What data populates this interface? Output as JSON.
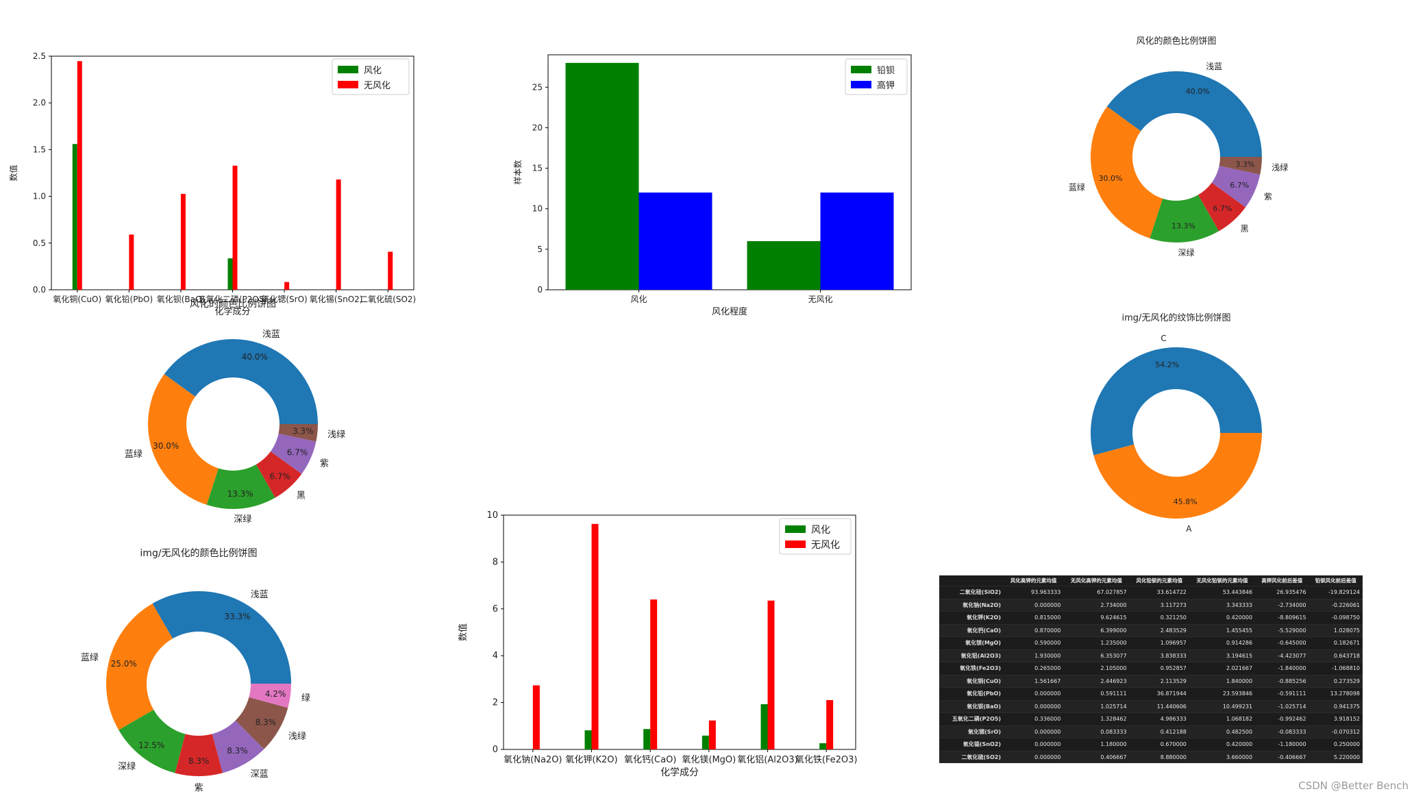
{
  "watermark": "CSDN @Better Bench",
  "colors": {
    "green": "#008000",
    "red": "#ff0000",
    "blue": "#0000ff",
    "pie": {
      "tab_blue": "#1f77b4",
      "tab_orange": "#ff7f0e",
      "tab_green": "#2ca02c",
      "tab_red": "#d62728",
      "tab_purple": "#9467bd",
      "tab_brown": "#8c564b",
      "tab_pink": "#e377c2"
    }
  },
  "chart_data": [
    {
      "id": "bar1",
      "type": "bar",
      "title": "",
      "xlabel": "化学成分",
      "ylabel": "数值",
      "ylim": [
        0,
        2.5
      ],
      "yticks": [
        0.0,
        0.5,
        1.0,
        1.5,
        2.0,
        2.5
      ],
      "ytick_labels": [
        "0.0",
        "0.5",
        "1.0",
        "1.5",
        "2.0",
        "2.5"
      ],
      "categories": [
        "氧化铜(CuO)",
        "氧化铅(PbO)",
        "氧化钡(BaO)",
        "五氧化二磷(P2O5)",
        "氧化锶(SrO)",
        "氧化锡(SnO2)",
        "二氧化硫(SO2)"
      ],
      "series": [
        {
          "name": "风化",
          "color": "green",
          "values": [
            1.56,
            0.0,
            0.0,
            0.336,
            0.0,
            0.0,
            0.0
          ]
        },
        {
          "name": "无风化",
          "color": "red",
          "values": [
            2.447,
            0.591,
            1.026,
            1.328,
            0.083,
            1.18,
            0.407
          ]
        }
      ],
      "legend": "top-right"
    },
    {
      "id": "bar2",
      "type": "bar",
      "title": "",
      "xlabel": "风化程度",
      "ylabel": "样本数",
      "ylim": [
        0,
        29
      ],
      "yticks": [
        0,
        5,
        10,
        15,
        20,
        25
      ],
      "ytick_labels": [
        "0",
        "5",
        "10",
        "15",
        "20",
        "25"
      ],
      "categories": [
        "风化",
        "无风化"
      ],
      "series": [
        {
          "name": "铅钡",
          "color": "green",
          "values": [
            28,
            6
          ]
        },
        {
          "name": "高钾",
          "color": "blue",
          "values": [
            12,
            12
          ]
        }
      ],
      "legend": "top-right"
    },
    {
      "id": "bar3",
      "type": "bar",
      "title": "",
      "xlabel": "化学成分",
      "ylabel": "数值",
      "ylim": [
        0,
        10
      ],
      "yticks": [
        0,
        2,
        4,
        6,
        8,
        10
      ],
      "ytick_labels": [
        "0",
        "2",
        "4",
        "6",
        "8",
        "10"
      ],
      "categories": [
        "氧化钠(Na2O)",
        "氧化钾(K2O)",
        "氧化钙(CaO)",
        "氧化镁(MgO)",
        "氧化铝(Al2O3)",
        "氧化铁(Fe2O3)"
      ],
      "series": [
        {
          "name": "风化",
          "color": "green",
          "values": [
            0.0,
            0.815,
            0.87,
            0.59,
            1.93,
            0.265
          ]
        },
        {
          "name": "无风化",
          "color": "red",
          "values": [
            2.734,
            9.625,
            6.399,
            1.235,
            6.353,
            2.105
          ]
        }
      ],
      "legend": "top-right"
    },
    {
      "id": "pie1",
      "type": "pie",
      "title": "风化的颜色比例饼图",
      "labels": [
        "浅蓝",
        "蓝绿",
        "深绿",
        "黑",
        "紫",
        "浅绿"
      ],
      "values": [
        40.0,
        30.0,
        13.3,
        6.7,
        6.7,
        3.3
      ],
      "pct_labels": [
        "40.0%",
        "30.0%",
        "13.3%",
        "6.7%",
        "6.7%",
        "3.3%"
      ],
      "colors": [
        "tab_blue",
        "tab_orange",
        "tab_green",
        "tab_red",
        "tab_purple",
        "tab_brown"
      ]
    },
    {
      "id": "pie2",
      "type": "pie",
      "title": "风化的颜色比例饼图",
      "labels": [
        "浅蓝",
        "蓝绿",
        "深绿",
        "黑",
        "紫",
        "浅绿"
      ],
      "values": [
        40.0,
        30.0,
        13.3,
        6.7,
        6.7,
        3.3
      ],
      "pct_labels": [
        "40.0%",
        "30.0%",
        "13.3%",
        "6.7%",
        "6.7%",
        "3.3%"
      ],
      "colors": [
        "tab_blue",
        "tab_orange",
        "tab_green",
        "tab_red",
        "tab_purple",
        "tab_brown"
      ]
    },
    {
      "id": "pie3",
      "type": "pie",
      "title": "img/无风化的颜色比例饼图",
      "labels": [
        "浅蓝",
        "蓝绿",
        "深绿",
        "紫",
        "深蓝",
        "浅绿",
        "绿"
      ],
      "values": [
        33.3,
        25.0,
        12.5,
        8.3,
        8.3,
        8.3,
        4.2
      ],
      "pct_labels": [
        "33.3%",
        "25.0%",
        "12.5%",
        "8.3%",
        "8.3%",
        "8.3%",
        "4.2%"
      ],
      "colors": [
        "tab_blue",
        "tab_orange",
        "tab_green",
        "tab_red",
        "tab_purple",
        "tab_brown",
        "tab_pink"
      ]
    },
    {
      "id": "pie4",
      "type": "pie",
      "title": "img/无风化的纹饰比例饼图",
      "labels": [
        "C",
        "A"
      ],
      "values": [
        54.2,
        45.8
      ],
      "pct_labels": [
        "54.2%",
        "45.8%"
      ],
      "colors": [
        "tab_blue",
        "tab_orange"
      ]
    },
    {
      "id": "table1",
      "type": "table",
      "columns": [
        "",
        "风化高钾的元素均值",
        "无风化高钾的元素均值",
        "风化铅钡的元素均值",
        "无风化铅钡的元素均值",
        "高钾风化前后差值",
        "铅钡风化前后差值"
      ],
      "rows": [
        [
          "二氧化硅(SiO2)",
          "93.963333",
          "67.027857",
          "33.614722",
          "53.443846",
          "26.935476",
          "-19.829124"
        ],
        [
          "氧化钠(Na2O)",
          "0.000000",
          "2.734000",
          "3.117273",
          "3.343333",
          "-2.734000",
          "-0.226061"
        ],
        [
          "氧化钾(K2O)",
          "0.815000",
          "9.624615",
          "0.321250",
          "0.420000",
          "-8.809615",
          "-0.098750"
        ],
        [
          "氧化钙(CaO)",
          "0.870000",
          "6.399000",
          "2.483529",
          "1.455455",
          "-5.529000",
          "1.028075"
        ],
        [
          "氧化镁(MgO)",
          "0.590000",
          "1.235000",
          "1.096957",
          "0.914286",
          "-0.645000",
          "0.182671"
        ],
        [
          "氧化铝(Al2O3)",
          "1.930000",
          "6.353077",
          "3.838333",
          "3.194615",
          "-4.423077",
          "0.643718"
        ],
        [
          "氧化铁(Fe2O3)",
          "0.265000",
          "2.105000",
          "0.952857",
          "2.021667",
          "-1.840000",
          "-1.068810"
        ],
        [
          "氧化铜(CuO)",
          "1.561667",
          "2.446923",
          "2.113529",
          "1.840000",
          "-0.885256",
          "0.273529"
        ],
        [
          "氧化铅(PbO)",
          "0.000000",
          "0.591111",
          "36.871944",
          "23.593846",
          "-0.591111",
          "13.278098"
        ],
        [
          "氧化钡(BaO)",
          "0.000000",
          "1.025714",
          "11.440606",
          "10.499231",
          "-1.025714",
          "0.941375"
        ],
        [
          "五氧化二磷(P2O5)",
          "0.336000",
          "1.328462",
          "4.986333",
          "1.068182",
          "-0.992462",
          "3.918152"
        ],
        [
          "氧化锶(SrO)",
          "0.000000",
          "0.083333",
          "0.412188",
          "0.482500",
          "-0.083333",
          "-0.070312"
        ],
        [
          "氧化锡(SnO2)",
          "0.000000",
          "1.180000",
          "0.670000",
          "0.420000",
          "-1.180000",
          "0.250000"
        ],
        [
          "二氧化硫(SO2)",
          "0.000000",
          "0.406667",
          "8.880000",
          "3.660000",
          "-0.406667",
          "5.220000"
        ]
      ]
    }
  ]
}
